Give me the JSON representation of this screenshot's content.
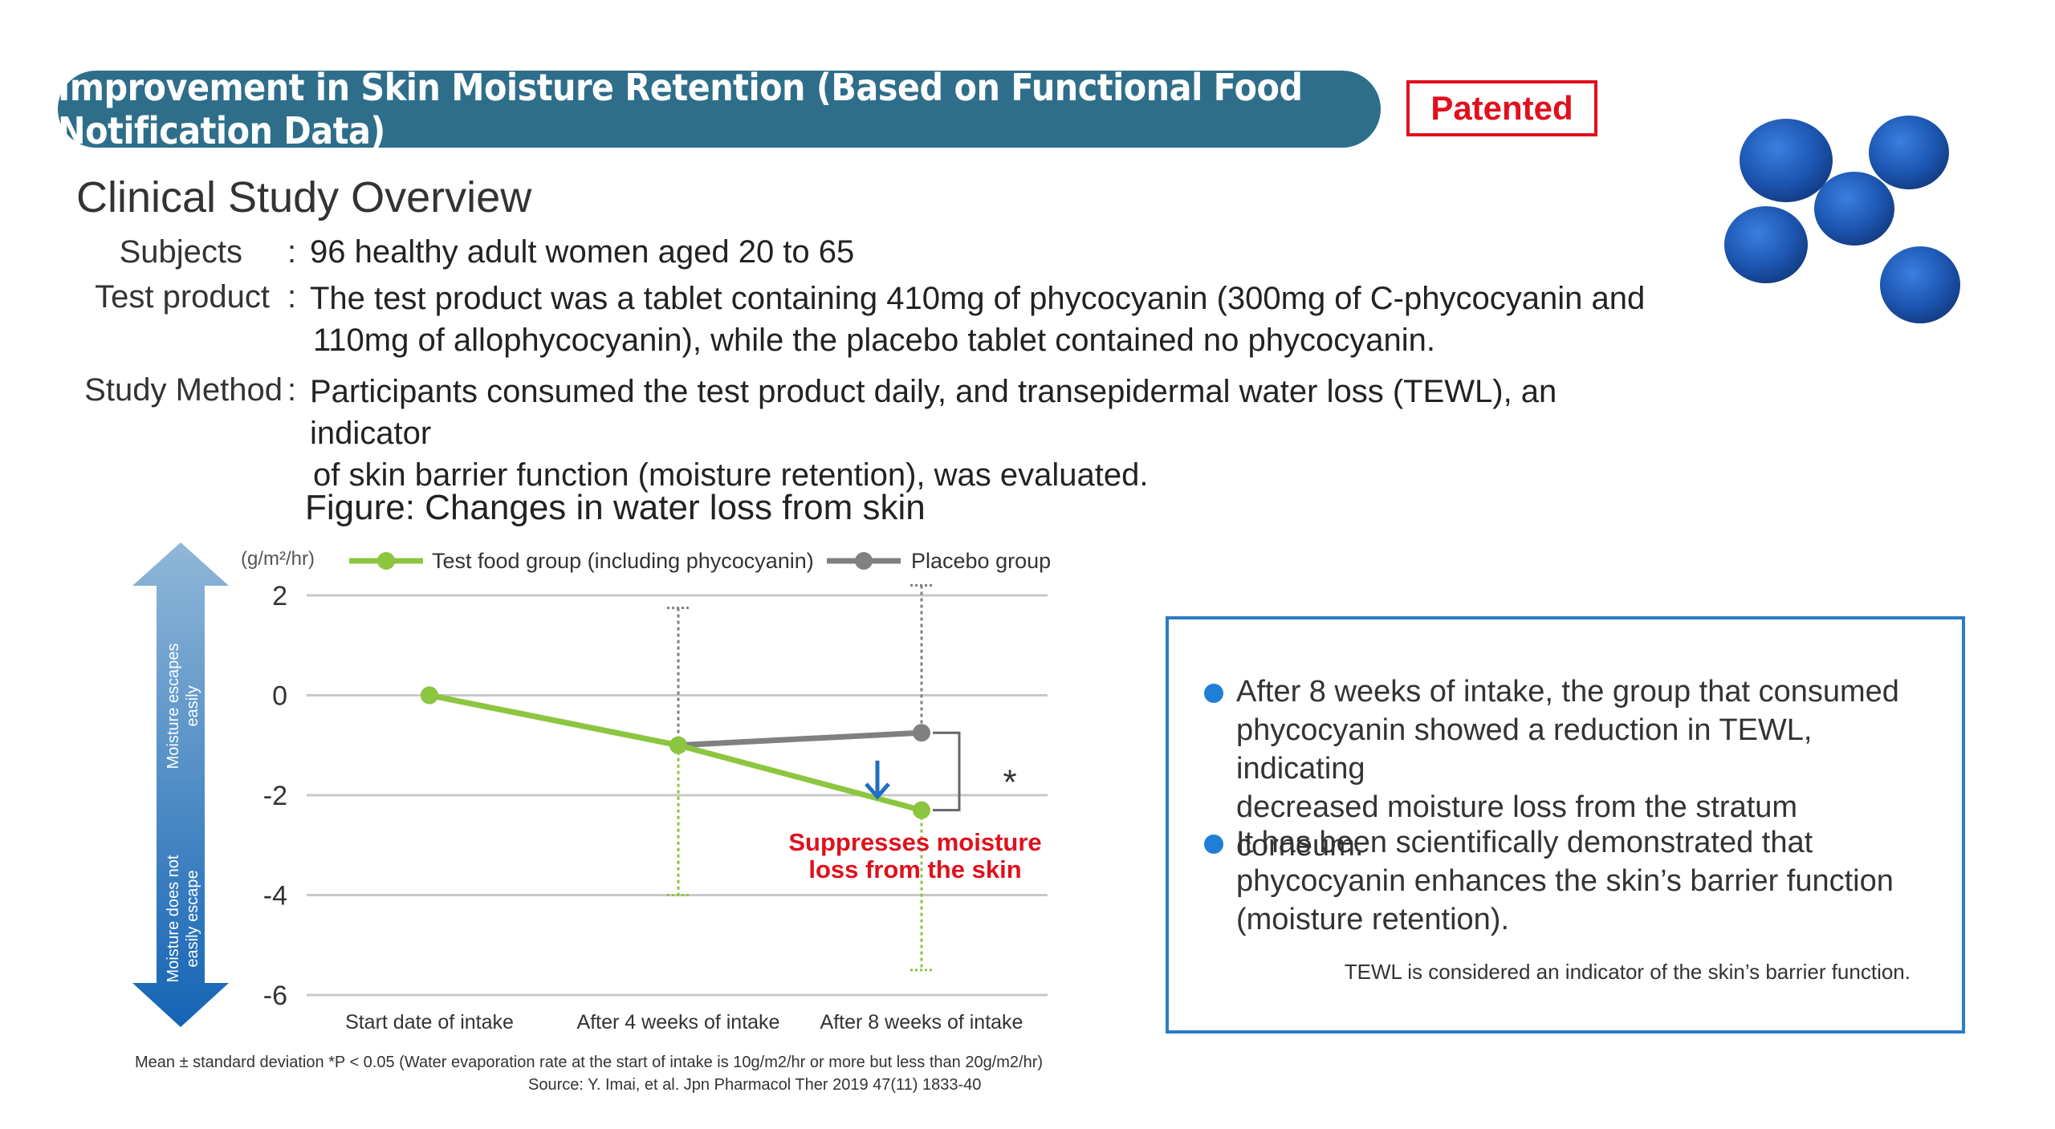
{
  "header": {
    "title": "Improvement in Skin Moisture Retention (Based on Functional Food Notification Data)",
    "badge": "Patented"
  },
  "overview": {
    "heading": "Clinical Study Overview",
    "rows": [
      {
        "label": "Subjects",
        "lines": [
          "96 healthy adult women aged 20 to 65"
        ]
      },
      {
        "label": "Test product",
        "lines": [
          "The test product was a tablet containing 410mg of phycocyanin (300mg of C-phycocyanin and",
          "110mg of allophycocyanin), while the placebo tablet contained no phycocyanin."
        ]
      },
      {
        "label": "Study Method",
        "lines": [
          "Participants consumed the test product daily, and transepidermal water loss (TEWL), an indicator",
          "of skin barrier function (moisture retention), was evaluated."
        ]
      }
    ]
  },
  "figure_title": "Figure: Changes in water loss from skin",
  "chart_data": {
    "type": "line",
    "ylabel": "(g/m²/hr)",
    "ylim": [
      -6,
      2
    ],
    "yticks": [
      "2",
      "0",
      "-2",
      "-4",
      "-6"
    ],
    "ytick_values": [
      2,
      0,
      -2,
      -4,
      -6
    ],
    "categories": [
      "Start date of intake",
      "After 4 weeks of intake",
      "After 8 weeks of intake"
    ],
    "series": [
      {
        "name": "Test food group (including phycocyanin)",
        "color": "#8cc63f",
        "values": [
          0,
          -1.0,
          -2.3
        ],
        "error_low": [
          null,
          -4.0,
          -5.5
        ],
        "error_high": [
          null,
          -1.0,
          -2.3
        ]
      },
      {
        "name": "Placebo group",
        "color": "#808080",
        "values": [
          0,
          -1.0,
          -0.75
        ],
        "error_low": [
          null,
          -1.0,
          -0.75
        ],
        "error_high": [
          null,
          1.75,
          2.2
        ]
      }
    ],
    "legend": "top",
    "grid": true,
    "significance_mark": "*",
    "annotation": [
      "Suppresses moisture",
      "loss from the skin"
    ],
    "annotation_color": "#e0101c",
    "side_arrow": {
      "up_label": [
        "Moisture escapes",
        "easily"
      ],
      "down_label": [
        "Moisture does not",
        "easily escape"
      ]
    }
  },
  "info": {
    "bullets": [
      [
        "After 8 weeks of intake, the group that consumed",
        "phycocyanin showed a reduction in TEWL, indicating",
        "decreased moisture loss from the stratum corneum."
      ],
      [
        "It has been scientifically demonstrated that",
        "phycocyanin enhances the skin’s barrier function",
        "(moisture retention)."
      ]
    ],
    "note": "TEWL is considered an indicator of the skin’s barrier function."
  },
  "footnotes": {
    "line1": "Mean ± standard deviation *P < 0.05    (Water evaporation rate at the start of intake is 10g/m2/hr or more but less than 20g/m2/hr)",
    "line2": "Source: Y. Imai, et al. Jpn Pharmacol Ther 2019 47(11) 1833-40"
  },
  "colors": {
    "accent": "#2e6e8a",
    "badge": "#e0101c",
    "box": "#2a7cc8",
    "tablet": "#1d57b3"
  }
}
